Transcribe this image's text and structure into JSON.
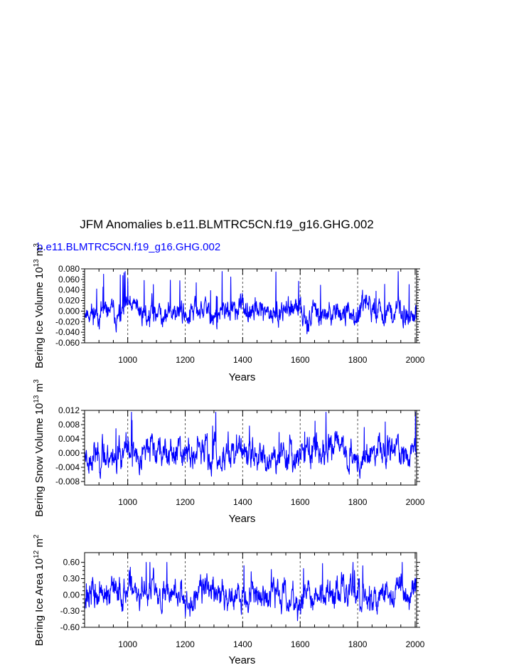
{
  "figure": {
    "title": "JFM Anomalies b.e11.BLMTRC5CN.f19_g16.GHG.002",
    "subtitle": "b.e11.BLMTRC5CN.f19_g16.GHG.002"
  },
  "colors": {
    "series": "#0000ff",
    "axis": "#000000",
    "refline": "#555555"
  },
  "chart_data": [
    {
      "type": "line",
      "ylabel": "Bering Ice Volume 10",
      "ylabel_sup": "13",
      "ylabel_unit": "m",
      "ylabel_unit_sup": "3",
      "xlabel": "Years",
      "xlim": [
        850,
        2005
      ],
      "ylim": [
        -0.06,
        0.08
      ],
      "xticks": [
        1000,
        1200,
        1400,
        1600,
        1800,
        2000
      ],
      "yticks": [
        -0.06,
        -0.04,
        -0.02,
        0.0,
        0.02,
        0.04,
        0.06,
        0.08
      ],
      "yticklabels": [
        "-0.060",
        "-0.040",
        "-0.020",
        "0.000",
        "0.020",
        "0.040",
        "0.060",
        "0.080"
      ],
      "ref_lines_x": [
        1000,
        1200,
        1400,
        1600,
        1800,
        2000
      ],
      "series": [
        {
          "seed": 11,
          "amp": 0.013,
          "min": -0.048,
          "max": 0.075
        }
      ]
    },
    {
      "type": "line",
      "ylabel": "Bering Snow Volume 10",
      "ylabel_sup": "13",
      "ylabel_unit": "m",
      "ylabel_unit_sup": "3",
      "xlabel": "Years",
      "xlim": [
        850,
        2005
      ],
      "ylim": [
        -0.009,
        0.012
      ],
      "xticks": [
        1000,
        1200,
        1400,
        1600,
        1800,
        2000
      ],
      "yticks": [
        -0.008,
        -0.004,
        0.0,
        0.004,
        0.008,
        0.012
      ],
      "yticklabels": [
        "-0.008",
        "-0.004",
        "0.000",
        "0.004",
        "0.008",
        "0.012"
      ],
      "ref_lines_x": [
        1000,
        1200,
        1400,
        1600,
        1800,
        2000
      ],
      "series": [
        {
          "seed": 23,
          "amp": 0.0026,
          "min": -0.0075,
          "max": 0.0115
        }
      ]
    },
    {
      "type": "line",
      "ylabel": "Bering Ice Area 10",
      "ylabel_sup": "12",
      "ylabel_unit": "m",
      "ylabel_unit_sup": "2",
      "xlabel": "Years",
      "xlim": [
        850,
        2005
      ],
      "ylim": [
        -0.6,
        0.78
      ],
      "xticks": [
        1000,
        1200,
        1400,
        1600,
        1800,
        2000
      ],
      "yticks": [
        -0.6,
        -0.3,
        0.0,
        0.3,
        0.6
      ],
      "yticklabels": [
        "-0.60",
        "-0.30",
        "0.00",
        "0.30",
        "0.60"
      ],
      "ref_lines_x": [
        1000,
        1200,
        1400,
        1600,
        1800,
        2000
      ],
      "series": [
        {
          "seed": 37,
          "amp": 0.16,
          "min": -0.56,
          "max": 0.6
        }
      ]
    }
  ]
}
